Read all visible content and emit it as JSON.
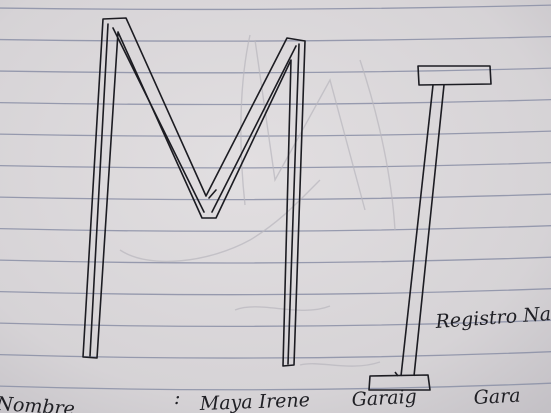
{
  "colors": {
    "paper": "#d8d5d7",
    "paper_shadow": "#c7c4c8",
    "rule_line": "#8a8fa6",
    "ink": "#1c1c22",
    "ghost_ink": "#b6b4bb"
  },
  "drawing": {
    "letter_1": "M",
    "letter_2": "I"
  },
  "handwriting": {
    "registro": "Registro Na",
    "nombre_label": "Nombre",
    "nombre_colon": ":",
    "nombre_value_1": "Maya Irene",
    "nombre_value_2": "Garaig",
    "nombre_value_3": "Gara"
  }
}
